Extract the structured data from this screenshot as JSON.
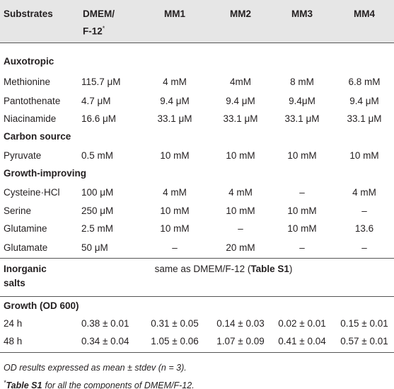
{
  "table": {
    "header": {
      "first": "Substrates",
      "dmem": [
        "DMEM/",
        "F-12",
        "*"
      ],
      "media": [
        "MM1",
        "MM2",
        "MM3",
        "MM4"
      ]
    },
    "sections": [
      {
        "title": "Auxotropic",
        "rows": [
          [
            "Methionine",
            "115.7 μM",
            "4 mM",
            "4mM",
            "8 mM",
            "6.8 mM"
          ],
          [
            "Pantothenate",
            "4.7 μM",
            "9.4 μM",
            "9.4 μM",
            "9.4μM",
            "9.4 μM"
          ],
          [
            "Niacinamide",
            "16.6 μM",
            "33.1 μM",
            "33.1 μM",
            "33.1 μM",
            "33.1 μM"
          ]
        ]
      },
      {
        "title": "Carbon source",
        "rows": [
          [
            "Pyruvate",
            "0.5 mM",
            "10 mM",
            "10 mM",
            "10 mM",
            "10 mM"
          ]
        ]
      },
      {
        "title": "Growth-improving",
        "rows": [
          [
            "Cysteine·HCl",
            "100 μM",
            "4 mM",
            "4 mM",
            "–",
            "4 mM"
          ],
          [
            "Serine",
            "250 μM",
            "10 mM",
            "10 mM",
            "10 mM",
            "–"
          ],
          [
            "Glutamine",
            "2.5 mM",
            "10 mM",
            "–",
            "10 mM",
            "13.6"
          ],
          [
            "Glutamate",
            "50 μM",
            "–",
            "20 mM",
            "–",
            "–"
          ]
        ]
      }
    ],
    "inorganic": {
      "title": [
        "Inorganic",
        "salts"
      ],
      "note": [
        "same as DMEM/F-12 (",
        "Table S1",
        ")"
      ]
    },
    "growth": {
      "title": "Growth (OD 600)",
      "rows": [
        [
          "24 h",
          "0.38 ± 0.01",
          "0.31 ± 0.05",
          "0.14 ± 0.03",
          "0.02 ± 0.01",
          "0.15 ± 0.01"
        ],
        [
          "48 h",
          "0.34 ± 0.04",
          "1.05 ± 0.06",
          "1.07 ± 0.09",
          "0.41 ± 0.04",
          "0.57 ± 0.01"
        ]
      ]
    },
    "notes": [
      [
        "OD results expressed as mean ± stdev (n = 3)."
      ],
      [
        "*",
        "Table S1",
        "for all the components of DMEM/F-12."
      ]
    ]
  }
}
